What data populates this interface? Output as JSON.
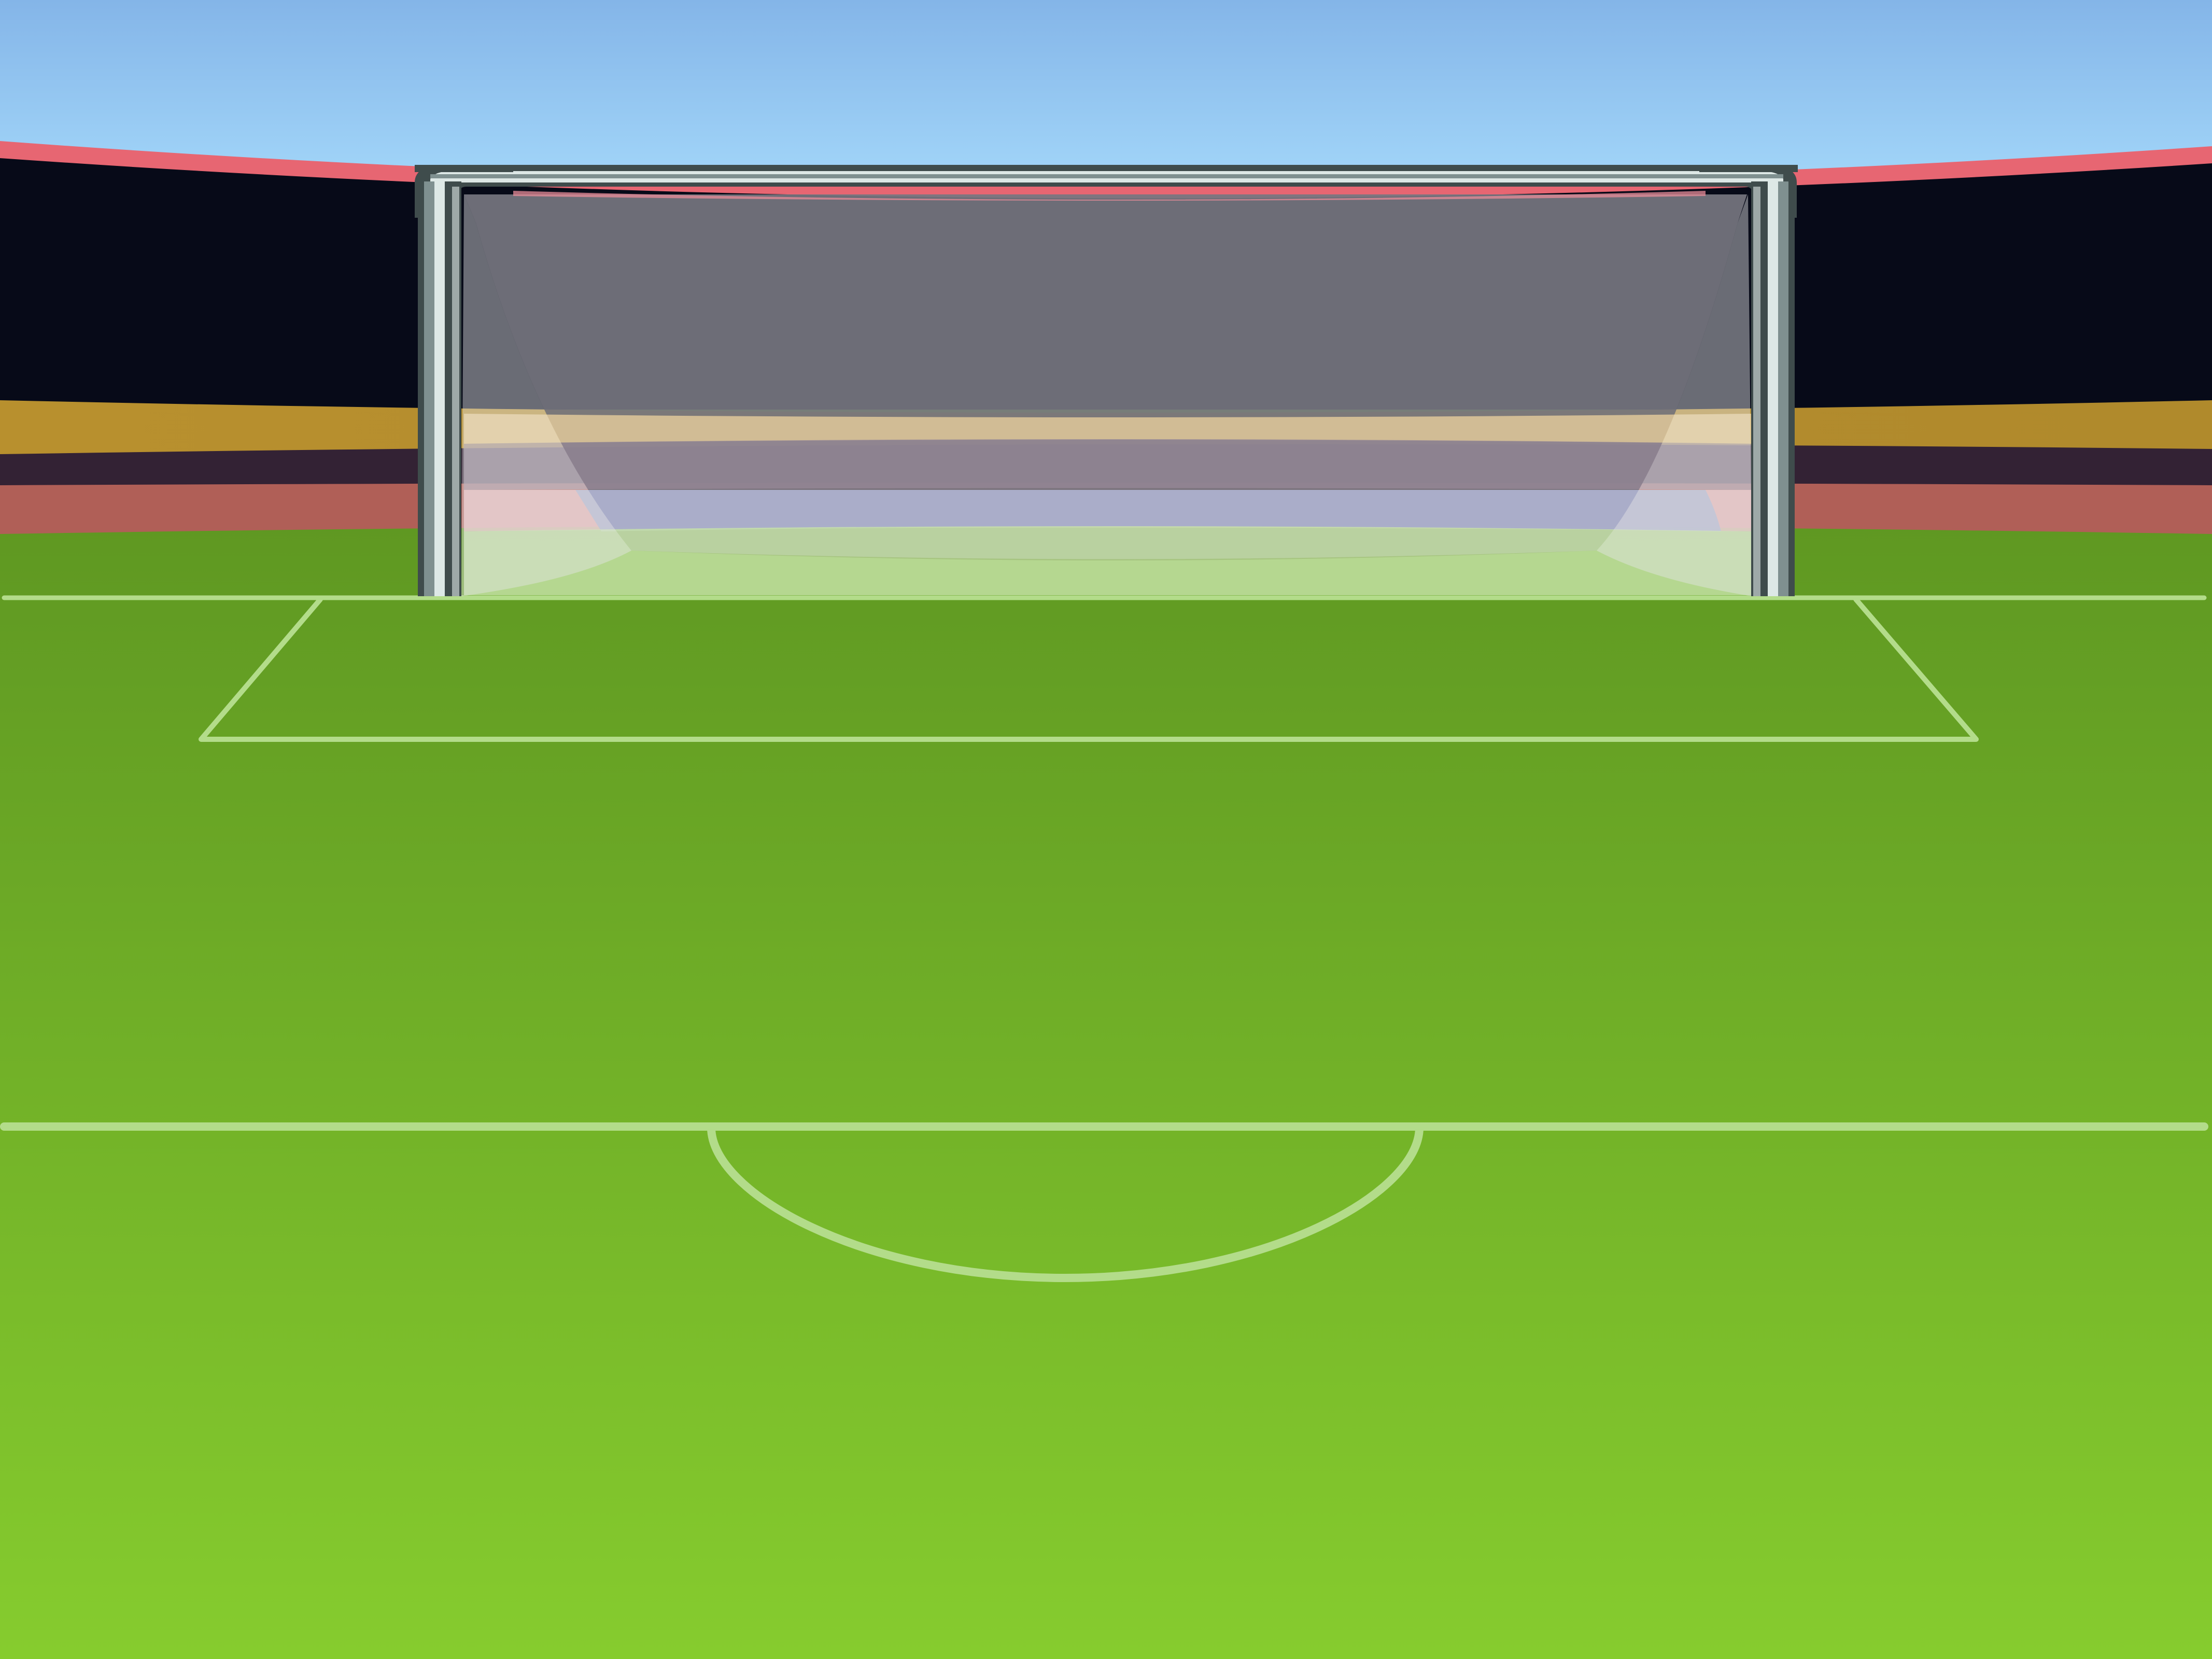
{
  "scene": {
    "kind": "soccer goal view",
    "colors": {
      "sky_top": "#84b5e8",
      "sky_bottom": "#a8dcfc",
      "stand_rim": "#e76672",
      "stand_dark": "#070a18",
      "band_gold": "#b48c2e",
      "band_purple": "#332234",
      "band_red": "#b05f57",
      "grass_top": "#5f9822",
      "grass_bottom": "#86cc2e",
      "lines": "#b3dc8a",
      "post_dark": "#3f4c4c",
      "post_mid": "#7f9090",
      "post_light": "#dde8e6",
      "net_fill": "#767680"
    }
  }
}
